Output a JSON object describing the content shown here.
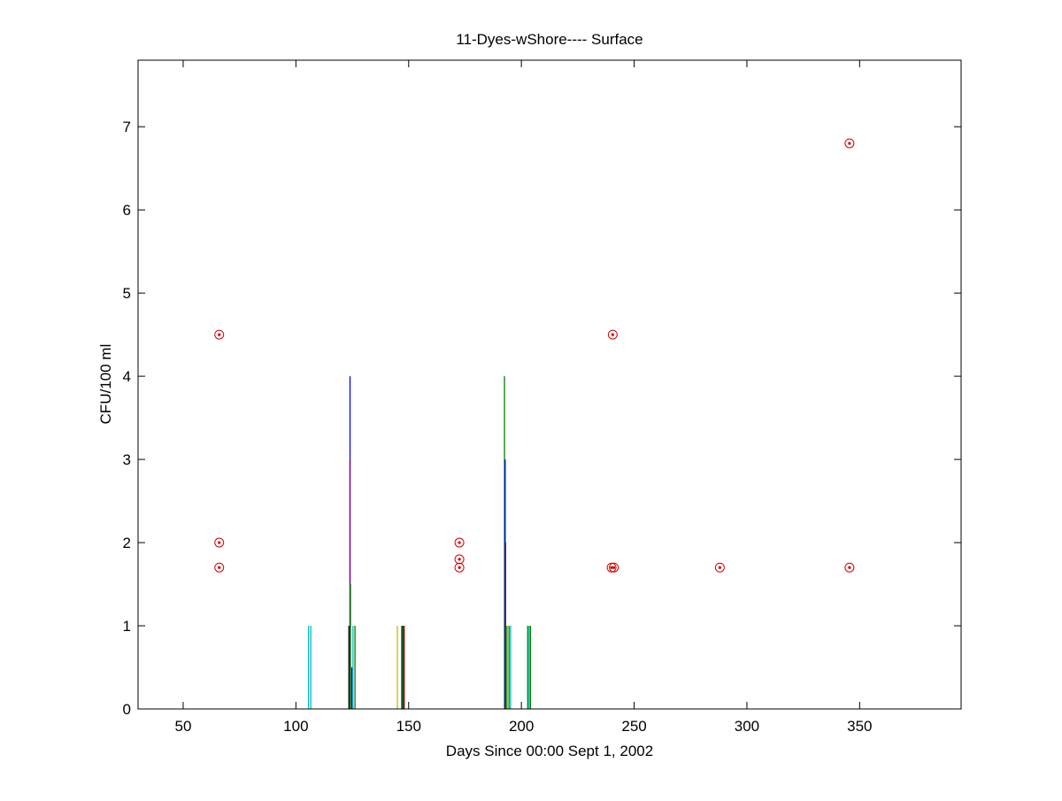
{
  "chart_data": {
    "type": "scatter",
    "title": "11-Dyes-wShore---- Surface",
    "xlabel": "Days Since 00:00 Sept 1, 2002",
    "ylabel": "CFU/100 ml",
    "xlim": [
      30,
      395
    ],
    "ylim": [
      0,
      7.8
    ],
    "xticks": [
      50,
      100,
      150,
      200,
      250,
      300,
      350
    ],
    "yticks": [
      0,
      1,
      2,
      3,
      4,
      5,
      6,
      7
    ],
    "grid": false,
    "box": true,
    "point_series": {
      "marker": "circle-dot",
      "color": "#d40000",
      "points": [
        {
          "x": 66,
          "y": 4.5
        },
        {
          "x": 66,
          "y": 2.0
        },
        {
          "x": 66,
          "y": 1.7
        },
        {
          "x": 172.5,
          "y": 2.0
        },
        {
          "x": 172.5,
          "y": 1.8
        },
        {
          "x": 172.5,
          "y": 1.7
        },
        {
          "x": 240.5,
          "y": 4.5
        },
        {
          "x": 240,
          "y": 1.7
        },
        {
          "x": 241,
          "y": 1.7
        },
        {
          "x": 288,
          "y": 1.7
        },
        {
          "x": 345.5,
          "y": 6.8
        },
        {
          "x": 345.5,
          "y": 1.7
        }
      ]
    },
    "stem_series": {
      "style": "vertical-lines",
      "stems": [
        {
          "x": 105.6,
          "y": 1.0,
          "color": "#00bfbf"
        },
        {
          "x": 106.6,
          "y": 1.0,
          "color": "#00bfbf"
        },
        {
          "x": 123.5,
          "y": 1.0,
          "color": "#000000"
        },
        {
          "x": 124.0,
          "y": 4.0,
          "color": "#0000ff"
        },
        {
          "x": 124.0,
          "y": 3.0,
          "color": "#800080"
        },
        {
          "x": 124.2,
          "y": 1.5,
          "color": "#008000"
        },
        {
          "x": 124.8,
          "y": 0.5,
          "color": "#0000ff"
        },
        {
          "x": 125.3,
          "y": 1.0,
          "color": "#00bfbf"
        },
        {
          "x": 126.2,
          "y": 1.0,
          "color": "#008000"
        },
        {
          "x": 145.0,
          "y": 1.0,
          "color": "#bfbf00"
        },
        {
          "x": 147.0,
          "y": 1.0,
          "color": "#000000"
        },
        {
          "x": 147.5,
          "y": 1.0,
          "color": "#008000"
        },
        {
          "x": 148.0,
          "y": 1.0,
          "color": "#800000"
        },
        {
          "x": 192.5,
          "y": 4.0,
          "color": "#008000"
        },
        {
          "x": 192.8,
          "y": 3.0,
          "color": "#0000ff"
        },
        {
          "x": 193.0,
          "y": 2.0,
          "color": "#800080"
        },
        {
          "x": 193.3,
          "y": 1.0,
          "color": "#008000"
        },
        {
          "x": 193.8,
          "y": 1.0,
          "color": "#bfbf00"
        },
        {
          "x": 194.5,
          "y": 1.0,
          "color": "#008000"
        },
        {
          "x": 195.2,
          "y": 1.0,
          "color": "#00bfbf"
        },
        {
          "x": 202.8,
          "y": 1.0,
          "color": "#008000"
        },
        {
          "x": 203.4,
          "y": 1.0,
          "color": "#00bfbf"
        },
        {
          "x": 204.0,
          "y": 1.0,
          "color": "#008000"
        }
      ]
    }
  }
}
